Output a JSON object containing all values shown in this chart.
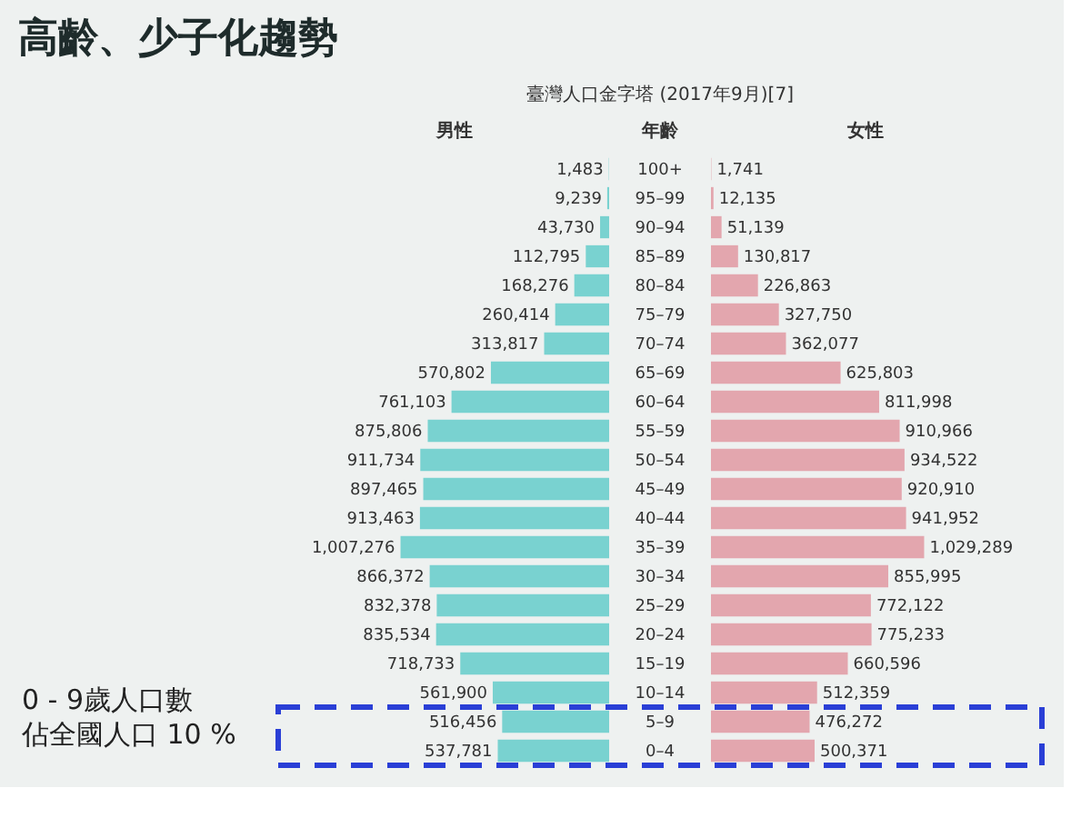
{
  "chart_data": [
    {
      "type": "bar",
      "orientation": "horizontal",
      "title": "高齡、少子化趨勢",
      "subtitle": "臺灣人口金字塔 (2017年9月)[7]",
      "ylabel": "年齡",
      "categories": [
        "100+",
        "95–99",
        "90–94",
        "85–89",
        "80–84",
        "75–79",
        "70–74",
        "65–69",
        "60–64",
        "55–59",
        "50–54",
        "45–49",
        "40–44",
        "35–39",
        "30–34",
        "25–29",
        "20–24",
        "15–19",
        "10–14",
        "5–9",
        "0–4"
      ],
      "series": [
        {
          "name": "男性",
          "color": "#79d2d0",
          "values": [
            1483,
            9239,
            43730,
            112795,
            168276,
            260414,
            313817,
            570802,
            761103,
            875806,
            911734,
            897465,
            913463,
            1007276,
            866372,
            832378,
            835534,
            718733,
            561900,
            516456,
            537781
          ],
          "value_labels": [
            "1,483",
            "9,239",
            "43,730",
            "112,795",
            "168,276",
            "260,414",
            "313,817",
            "570,802",
            "761,103",
            "875,806",
            "911,734",
            "897,465",
            "913,463",
            "1,007,276",
            "866,372",
            "832,378",
            "835,534",
            "718,733",
            "561,900",
            "516,456",
            "537,781"
          ]
        }
      ],
      "annotations": [
        "0 - 9歲人口數",
        "佔全國人口 10 %"
      ]
    },
    {
      "type": "bar",
      "orientation": "horizontal",
      "series": [
        {
          "name": "女性",
          "color": "#e3a6ae",
          "values": [
            1741,
            12135,
            51139,
            130817,
            226863,
            327750,
            362077,
            625803,
            811998,
            910966,
            934522,
            920910,
            941952,
            1029289,
            855995,
            772122,
            775233,
            660596,
            512359,
            476272,
            500371
          ],
          "value_labels": [
            "1,741",
            "12,135",
            "51,139",
            "130,817",
            "226,863",
            "327,750",
            "362,077",
            "625,803",
            "811,998",
            "910,966",
            "934,522",
            "920,910",
            "941,952",
            "1,029,289",
            "855,995",
            "772,122",
            "775,233",
            "660,596",
            "512,359",
            "476,272",
            "500,371"
          ]
        }
      ]
    }
  ]
}
